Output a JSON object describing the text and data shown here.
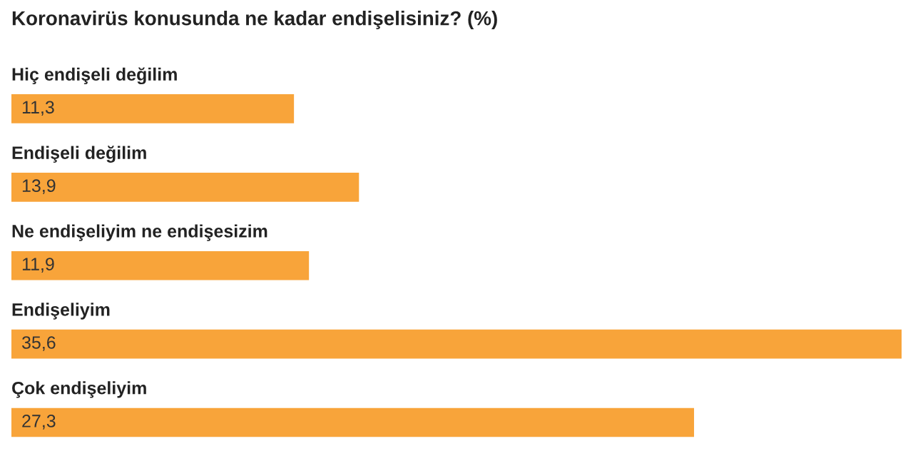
{
  "chart_data": {
    "type": "bar",
    "orientation": "horizontal",
    "title": "Koronavirüs konusunda ne kadar endişelisiniz? (%)",
    "categories": [
      "Hiç endişeli değilim",
      "Endişeli değilim",
      "Ne endişeliyim ne endişesizim",
      "Endişeliyim",
      "Çok endişeliyim"
    ],
    "values": [
      11.3,
      13.9,
      11.9,
      35.6,
      27.3
    ],
    "value_labels": [
      "11,3",
      "13,9",
      "11,9",
      "35,6",
      "27,3"
    ],
    "color": "#f8a43a",
    "xlim": [
      0,
      35.6
    ]
  }
}
